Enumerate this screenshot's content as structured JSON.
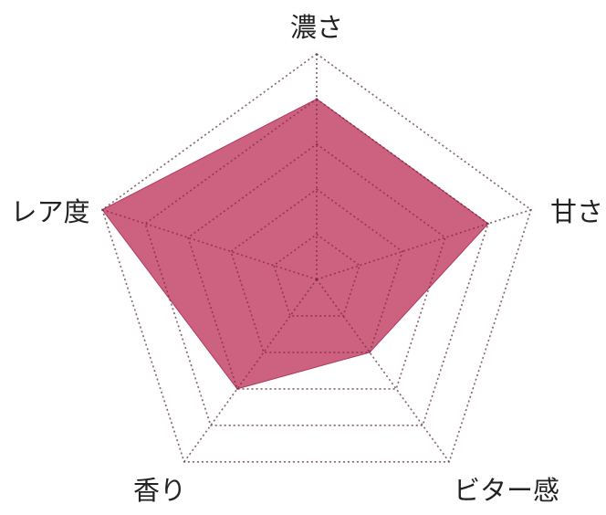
{
  "chart_data": {
    "type": "radar",
    "axes": [
      "濃さ",
      "甘さ",
      "ビター感",
      "香り",
      "レア度"
    ],
    "values": [
      4,
      4,
      2,
      3,
      5
    ],
    "range": [
      0,
      5
    ],
    "grid_levels": 5,
    "grid": true,
    "colors": {
      "fill": "#c4456a",
      "grid": "#aaaaaa"
    }
  }
}
